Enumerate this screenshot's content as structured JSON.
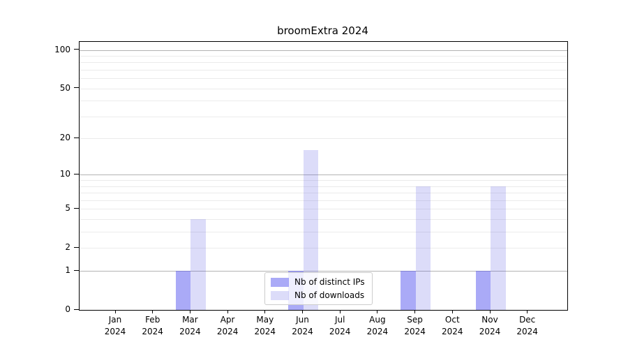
{
  "title": "broomExtra 2024",
  "chart_data": {
    "type": "bar",
    "title": "broomExtra 2024",
    "x_tick_months": [
      "Jan",
      "Feb",
      "Mar",
      "Apr",
      "May",
      "Jun",
      "Jul",
      "Aug",
      "Sep",
      "Oct",
      "Nov",
      "Dec"
    ],
    "x_tick_year": "2024",
    "series": [
      {
        "name": "Nb of distinct IPs",
        "fill": "rgba(85,85,240,0.5)",
        "values": [
          0,
          0,
          1,
          0,
          0,
          1,
          0,
          0,
          1,
          0,
          1,
          0
        ]
      },
      {
        "name": "Nb of downloads",
        "fill": "rgba(81,81,225,0.2)",
        "values": [
          0,
          0,
          4,
          0,
          0,
          16,
          0,
          0,
          8,
          0,
          8,
          0
        ]
      }
    ],
    "yscale": "log1p",
    "ylabel": "",
    "xlabel": "",
    "y_tick_values": [
      0,
      1,
      2,
      5,
      10,
      20,
      50,
      100
    ],
    "major_gridlines": [
      1,
      10,
      100
    ],
    "minor_gridlines": [
      2,
      3,
      4,
      5,
      6,
      7,
      8,
      9,
      20,
      30,
      40,
      50,
      60,
      70,
      80,
      90
    ],
    "ylim": [
      0,
      115
    ],
    "grid": true,
    "legend_position": "inside-bottom-center",
    "colors": {
      "distinct_ips_solid": "#aaaaf7",
      "downloads_solid": "#dcdcf9",
      "major_grid": "#b3b3b3",
      "minor_grid": "#ebebeb",
      "axis": "#000000",
      "legend_border": "#cccccc"
    }
  }
}
